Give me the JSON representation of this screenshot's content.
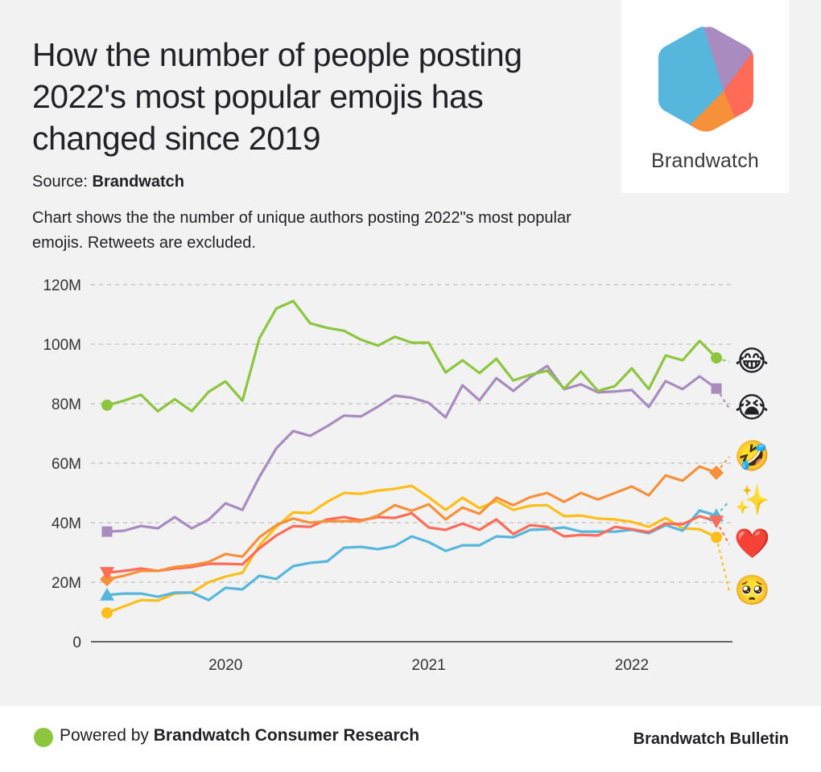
{
  "header": {
    "title": "How the number of people posting 2022's most popular emojis has changed since 2019",
    "source_label": "Source:",
    "source_name": "Brandwatch",
    "subtitle": "Chart shows the the number of unique authors posting 2022\"s most popular emojis. Retweets are excluded."
  },
  "logo": {
    "name": "Brandwatch",
    "colors": [
      "#56b6dc",
      "#a98bbf",
      "#ff6b57",
      "#f7903a",
      "#ffbe17",
      "#8cc63f"
    ]
  },
  "footer": {
    "powered_label": "Powered by",
    "powered_name": "Brandwatch Consumer Research",
    "brand": "Brandwatch Bulletin",
    "dot_color": "#8cc63f"
  },
  "chart_data": {
    "type": "line",
    "title": "How the number of people posting 2022's most popular emojis has changed since 2019",
    "xlabel": "",
    "ylabel": "",
    "ylim": [
      0,
      120
    ],
    "y_unit": "M",
    "y_ticks": [
      0,
      20,
      40,
      60,
      80,
      100,
      120
    ],
    "y_tick_labels": [
      "0",
      "20M",
      "40M",
      "60M",
      "80M",
      "100M",
      "120M"
    ],
    "x_tick_labels": [
      "2020",
      "2021",
      "2022"
    ],
    "x_tick_index": [
      7,
      19,
      31
    ],
    "grid": true,
    "legend": "right (emoji labels at line ends)",
    "x": [
      "2019-06",
      "2019-07",
      "2019-08",
      "2019-09",
      "2019-10",
      "2019-11",
      "2019-12",
      "2020-01",
      "2020-02",
      "2020-03",
      "2020-04",
      "2020-05",
      "2020-06",
      "2020-07",
      "2020-08",
      "2020-09",
      "2020-10",
      "2020-11",
      "2020-12",
      "2021-01",
      "2021-02",
      "2021-03",
      "2021-04",
      "2021-05",
      "2021-06",
      "2021-07",
      "2021-08",
      "2021-09",
      "2021-10",
      "2021-11",
      "2021-12",
      "2022-01",
      "2022-02",
      "2022-03",
      "2022-04",
      "2022-05",
      "2022-06"
    ],
    "series": [
      {
        "name": "Face with tears of joy",
        "emoji": "😂",
        "color": "#8cc63f",
        "marker": "circle",
        "values": [
          79.5,
          81,
          83,
          77.5,
          81.5,
          77.5,
          84,
          87.5,
          81,
          102,
          112,
          114.5,
          107,
          105.5,
          104.5,
          101.5,
          99.5,
          102.5,
          100.5,
          100.5,
          90.5,
          94.6,
          90.3,
          95.1,
          87.8,
          89.7,
          91.1,
          85.1,
          90.8,
          84.3,
          85.9,
          91.9,
          84.9,
          96.2,
          94.6,
          101.1,
          95.4
        ]
      },
      {
        "name": "Loudly crying face",
        "emoji": "😭",
        "color": "#a98bbf",
        "marker": "square",
        "values": [
          37,
          37.3,
          38.9,
          38.1,
          41.9,
          38.1,
          41,
          46.5,
          44.3,
          55.4,
          65,
          70.8,
          69.2,
          72.4,
          76,
          75.7,
          79,
          82.7,
          82,
          80.3,
          75.4,
          86.2,
          81.1,
          88.6,
          84.3,
          88.9,
          92.7,
          84.9,
          86.5,
          83.8,
          84.1,
          84.6,
          78.9,
          87.6,
          84.9,
          89.2,
          85.1
        ]
      },
      {
        "name": "Rolling on the floor laughing",
        "emoji": "🤣",
        "color": "#f7903a",
        "marker": "diamond",
        "values": [
          21,
          22.2,
          23.8,
          23.8,
          25.1,
          25.7,
          26.8,
          29.5,
          28.6,
          35.1,
          39.2,
          41.4,
          40,
          40.5,
          40.5,
          40.5,
          42.4,
          45.9,
          44,
          46.2,
          41.1,
          45.1,
          43,
          48.4,
          45.9,
          48.6,
          50,
          47,
          50,
          47.8,
          50,
          52.2,
          49.2,
          55.9,
          54.1,
          58.9,
          56.8
        ]
      },
      {
        "name": "Sparkles",
        "emoji": "✨",
        "color": "#56b6dc",
        "marker": "triangle-up",
        "values": [
          15.7,
          16.2,
          16.2,
          15.1,
          16.5,
          16.5,
          14,
          18.1,
          17.6,
          22.2,
          21.1,
          25.4,
          26.5,
          27,
          31.6,
          31.9,
          31.1,
          32.2,
          35.4,
          33.5,
          30.5,
          32.4,
          32.4,
          35.4,
          35.1,
          37.6,
          37.8,
          38.4,
          37,
          37,
          37,
          37.6,
          36.5,
          39.2,
          37.3,
          44.1,
          42.4
        ]
      },
      {
        "name": "Red heart",
        "emoji": "❤️",
        "color": "#ff6b57",
        "marker": "triangle-down",
        "values": [
          23.2,
          23.8,
          24.6,
          23.8,
          24.6,
          25.1,
          26.2,
          26.2,
          26,
          31.4,
          35.7,
          38.9,
          38.6,
          41.1,
          41.9,
          40.8,
          41.9,
          41.6,
          43.2,
          38.4,
          37.6,
          39.7,
          37.6,
          41.1,
          36.2,
          39.2,
          38.6,
          35.4,
          35.9,
          35.7,
          38.6,
          37.8,
          36.8,
          39.7,
          39.5,
          42.2,
          40.5
        ]
      },
      {
        "name": "Pleading face",
        "emoji": "🥺",
        "color": "#ffbe17",
        "marker": "circle",
        "values": [
          9.7,
          11.9,
          14,
          13.8,
          16.2,
          16.5,
          20,
          21.9,
          23.2,
          32.4,
          38.6,
          43.5,
          43.2,
          47,
          50,
          49.7,
          50.8,
          51.4,
          52.4,
          48.6,
          44.3,
          48.4,
          44.9,
          47.3,
          44.3,
          45.7,
          45.9,
          42.2,
          42.4,
          41.4,
          41.1,
          40.3,
          38.6,
          41.6,
          38.1,
          37.8,
          35.1
        ]
      }
    ]
  }
}
